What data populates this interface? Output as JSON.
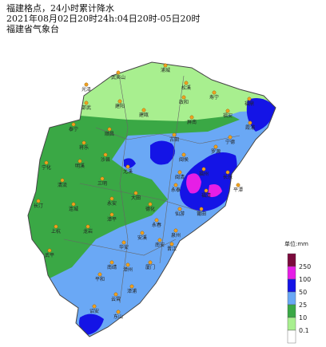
{
  "header": {
    "lines": [
      "福建格点，24小时累计降水",
      "2021年08月02日20时24h:04日20时-05日20时",
      "福建省气象台"
    ]
  },
  "legend": {
    "unit": "单位:mm",
    "items": [
      {
        "label": "250",
        "color": "#7b0a3c"
      },
      {
        "label": "100",
        "color": "#e61ee6"
      },
      {
        "label": "50",
        "color": "#1414e6"
      },
      {
        "label": "25",
        "color": "#6aa8f5"
      },
      {
        "label": "10",
        "color": "#3aa845"
      },
      {
        "label": "0.1",
        "color": "#a8ef8f"
      }
    ]
  },
  "cities": [
    "浦城",
    "武夷山",
    "光泽",
    "松溪",
    "政和",
    "寿宁",
    "福鼎",
    "福安",
    "霞浦",
    "宁德",
    "邵武",
    "建阳",
    "建瓯",
    "屏南",
    "泰宁",
    "将乐",
    "顺昌",
    "古田",
    "罗源",
    "福州",
    "长乐",
    "闽侯",
    "宁化",
    "明溪",
    "沙县",
    "尤溪",
    "闽清",
    "永泰",
    "福清",
    "平潭",
    "清流",
    "三明",
    "大田",
    "莆田",
    "仙游",
    "长汀",
    "连城",
    "永安",
    "德化",
    "永春",
    "泉州",
    "晋江",
    "上杭",
    "龙岩",
    "漳平",
    "安溪",
    "南安",
    "厦门",
    "武平",
    "华安",
    "漳州",
    "南靖",
    "平和",
    "漳浦",
    "云霄",
    "诏安",
    "东山"
  ]
}
